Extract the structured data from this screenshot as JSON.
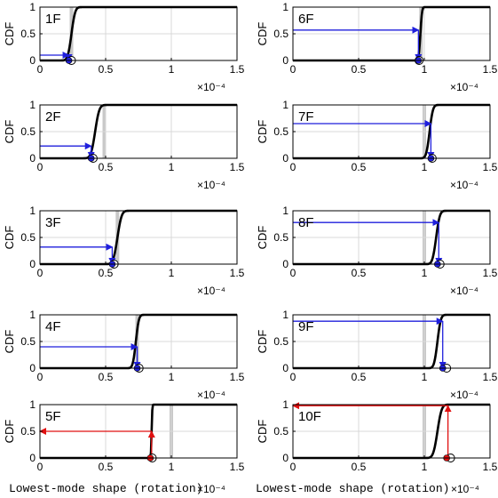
{
  "figure": {
    "x_label": "Lowest-mode shape (rotation)",
    "exponent_label": "×10⁻⁴"
  },
  "colors": {
    "curve": "#000000",
    "arrow_blue": "#1f1fdc",
    "arrow_red": "#e01010",
    "marker_fill_blue": "#1f1fdc",
    "marker_fill_red": "#e01010",
    "grid": "#d9d9d9",
    "gray_band": "#c8c8c8"
  },
  "chart_data": [
    {
      "type": "line",
      "panel_label": "1F",
      "ylabel": "CDF",
      "xlim": [
        0,
        1.5
      ],
      "ylim": [
        0,
        1
      ],
      "x_ticks": [
        "0",
        "0.5",
        "1",
        "1.5"
      ],
      "y_ticks": [
        "0",
        "0.5",
        "1"
      ],
      "x_scale": "1e-4",
      "grid": true,
      "cdf_mean": 0.24,
      "cdf_spread": 0.022,
      "gray_line_x": 0.24,
      "arrow_color": "blue",
      "arrow_start": [
        0.0,
        0.1
      ],
      "arrow_corner": [
        0.22,
        0.1
      ],
      "arrow_end": [
        0.22,
        0.0
      ],
      "marker_x": [
        0.22,
        0.24
      ]
    },
    {
      "type": "line",
      "panel_label": "6F",
      "ylabel": "CDF",
      "xlim": [
        0,
        1.5
      ],
      "ylim": [
        0,
        1
      ],
      "x_ticks": [
        "0",
        "0.5",
        "1",
        "1.5"
      ],
      "y_ticks": [
        "0",
        "0.5",
        "1"
      ],
      "x_scale": "1e-4",
      "grid": true,
      "cdf_mean": 0.97,
      "cdf_spread": 0.01,
      "gray_line_x": 0.975,
      "arrow_color": "blue",
      "arrow_start": [
        0.0,
        0.57
      ],
      "arrow_corner": [
        0.955,
        0.57
      ],
      "arrow_end": [
        0.955,
        0.0
      ],
      "marker_x": [
        0.955,
        0.96
      ]
    },
    {
      "type": "line",
      "panel_label": "2F",
      "ylabel": "CDF",
      "xlim": [
        0,
        1.5
      ],
      "ylim": [
        0,
        1
      ],
      "x_ticks": [
        "0",
        "0.5",
        "1",
        "1.5"
      ],
      "y_ticks": [
        "0",
        "0.5",
        "1"
      ],
      "x_scale": "1e-4",
      "grid": true,
      "cdf_mean": 0.42,
      "cdf_spread": 0.025,
      "gray_line_x": 0.49,
      "arrow_color": "blue",
      "arrow_start": [
        0.0,
        0.23
      ],
      "arrow_corner": [
        0.39,
        0.23
      ],
      "arrow_end": [
        0.39,
        0.0
      ],
      "marker_x": [
        0.39,
        0.405
      ]
    },
    {
      "type": "line",
      "panel_label": "7F",
      "ylabel": "CDF",
      "xlim": [
        0,
        1.5
      ],
      "ylim": [
        0,
        1
      ],
      "x_ticks": [
        "0",
        "0.5",
        "1",
        "1.5"
      ],
      "y_ticks": [
        "0",
        "0.5",
        "1"
      ],
      "x_scale": "1e-4",
      "grid": true,
      "cdf_mean": 1.04,
      "cdf_spread": 0.02,
      "gray_line_x": 1.0,
      "arrow_color": "blue",
      "arrow_start": [
        0.0,
        0.65
      ],
      "arrow_corner": [
        1.05,
        0.65
      ],
      "arrow_end": [
        1.05,
        0.0
      ],
      "marker_x": [
        1.05,
        1.06
      ]
    },
    {
      "type": "line",
      "panel_label": "3F",
      "ylabel": "CDF",
      "xlim": [
        0,
        1.5
      ],
      "ylim": [
        0,
        1
      ],
      "x_ticks": [
        "0",
        "0.5",
        "1",
        "1.5"
      ],
      "y_ticks": [
        "0",
        "0.5",
        "1"
      ],
      "x_scale": "1e-4",
      "grid": true,
      "cdf_mean": 0.59,
      "cdf_spread": 0.025,
      "gray_line_x": 0.59,
      "arrow_color": "blue",
      "arrow_start": [
        0.0,
        0.32
      ],
      "arrow_corner": [
        0.55,
        0.32
      ],
      "arrow_end": [
        0.55,
        0.0
      ],
      "marker_x": [
        0.55,
        0.565
      ]
    },
    {
      "type": "line",
      "panel_label": "8F",
      "ylabel": "CDF",
      "xlim": [
        0,
        1.5
      ],
      "ylim": [
        0,
        1
      ],
      "x_ticks": [
        "0",
        "0.5",
        "1",
        "1.5"
      ],
      "y_ticks": [
        "0",
        "0.5",
        "1"
      ],
      "x_scale": "1e-4",
      "grid": true,
      "cdf_mean": 1.09,
      "cdf_spread": 0.022,
      "gray_line_x": 1.0,
      "arrow_color": "blue",
      "arrow_start": [
        0.0,
        0.78
      ],
      "arrow_corner": [
        1.11,
        0.78
      ],
      "arrow_end": [
        1.11,
        0.0
      ],
      "marker_x": [
        1.1,
        1.12
      ]
    },
    {
      "type": "line",
      "panel_label": "4F",
      "ylabel": "CDF",
      "xlim": [
        0,
        1.5
      ],
      "ylim": [
        0,
        1
      ],
      "x_ticks": [
        "0",
        "0.5",
        "1",
        "1.5"
      ],
      "y_ticks": [
        "0",
        "0.5",
        "1"
      ],
      "x_scale": "1e-4",
      "grid": true,
      "cdf_mean": 0.73,
      "cdf_spread": 0.018,
      "gray_line_x": 0.74,
      "arrow_color": "blue",
      "arrow_start": [
        0.0,
        0.4
      ],
      "arrow_corner": [
        0.74,
        0.4
      ],
      "arrow_end": [
        0.74,
        0.0
      ],
      "marker_x": [
        0.74,
        0.755
      ]
    },
    {
      "type": "line",
      "panel_label": "9F",
      "ylabel": "CDF",
      "xlim": [
        0,
        1.5
      ],
      "ylim": [
        0,
        1
      ],
      "x_ticks": [
        "0",
        "0.5",
        "1",
        "1.5"
      ],
      "y_ticks": [
        "0",
        "0.5",
        "1"
      ],
      "x_scale": "1e-4",
      "grid": true,
      "cdf_mean": 1.1,
      "cdf_spread": 0.02,
      "gray_line_x": 1.0,
      "arrow_color": "blue",
      "arrow_start": [
        0.0,
        0.88
      ],
      "arrow_corner": [
        1.14,
        0.88
      ],
      "arrow_end": [
        1.14,
        0.0
      ],
      "marker_x": [
        1.14,
        1.17
      ]
    },
    {
      "type": "line",
      "panel_label": "5F",
      "ylabel": "CDF",
      "xlim": [
        0,
        1.5
      ],
      "ylim": [
        0,
        1
      ],
      "x_ticks": [
        "0",
        "0.5",
        "1",
        "1.5"
      ],
      "y_ticks": [
        "0",
        "0.5",
        "1"
      ],
      "x_scale": "1e-4",
      "grid": true,
      "cdf_mean": 0.85,
      "cdf_spread": 0.004,
      "gray_line_x": 1.0,
      "arrow_color": "red",
      "arrow_start": [
        0.85,
        0.0
      ],
      "arrow_corner": [
        0.85,
        0.5
      ],
      "arrow_end": [
        0.0,
        0.5
      ],
      "marker_x": [
        0.84,
        0.855
      ]
    },
    {
      "type": "line",
      "panel_label": "10F",
      "ylabel": "CDF",
      "xlim": [
        0,
        1.5
      ],
      "ylim": [
        0,
        1
      ],
      "x_ticks": [
        "0",
        "0.5",
        "1",
        "1.5"
      ],
      "y_ticks": [
        "0",
        "0.5",
        "1"
      ],
      "x_scale": "1e-4",
      "grid": true,
      "cdf_mean": 1.1,
      "cdf_spread": 0.025,
      "gray_line_x": 1.0,
      "arrow_color": "red",
      "arrow_start": [
        1.18,
        0.0
      ],
      "arrow_corner": [
        1.18,
        0.98
      ],
      "arrow_end": [
        0.0,
        0.98
      ],
      "marker_x": [
        1.17,
        1.2
      ]
    }
  ]
}
